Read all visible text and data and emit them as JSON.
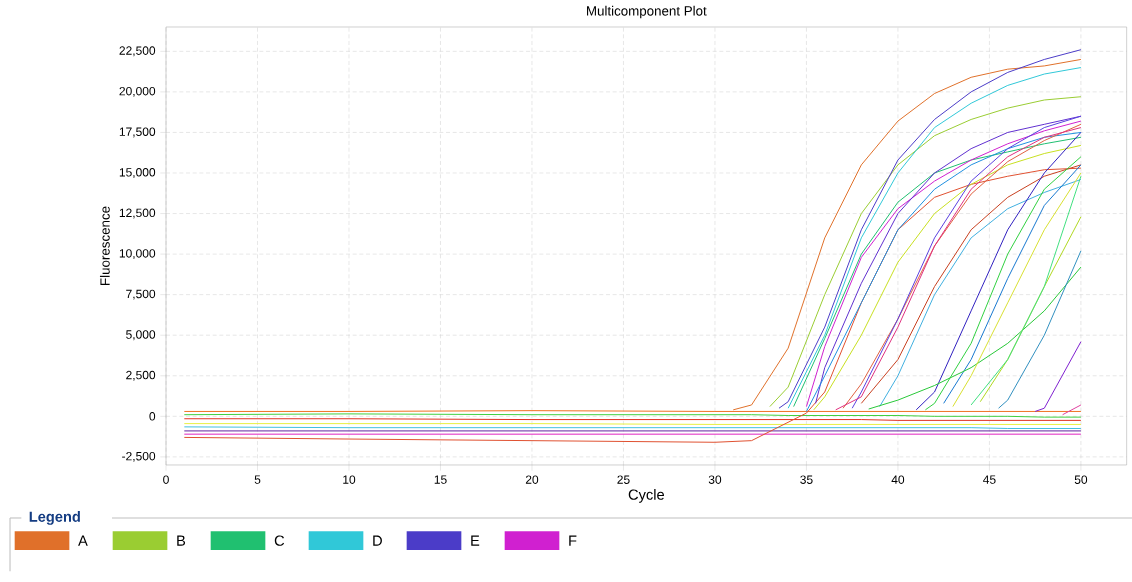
{
  "chart_data": {
    "type": "line",
    "title": "Multicomponent Plot",
    "xlabel": "Cycle",
    "ylabel": "Fluorescence",
    "legend_title": "Legend",
    "legend": "bottom",
    "grid": true,
    "line_style": "solid",
    "xlim": [
      0,
      52.5
    ],
    "ylim": [
      -3000,
      24000
    ],
    "xticks": [
      0,
      5,
      10,
      15,
      20,
      25,
      30,
      35,
      40,
      45,
      50
    ],
    "yticks": [
      {
        "value": -2500,
        "label": "-2,500"
      },
      0,
      {
        "value": 2500,
        "label": "2,500"
      },
      {
        "value": 5000,
        "label": "5,000"
      },
      {
        "value": 7500,
        "label": "7,500"
      },
      {
        "value": 10000,
        "label": "10,000"
      },
      {
        "value": 12500,
        "label": "12,500"
      },
      {
        "value": 15000,
        "label": "15,000"
      },
      {
        "value": 17500,
        "label": "17,500"
      },
      {
        "value": 20000,
        "label": "20,000"
      },
      {
        "value": 22500,
        "label": "22,500"
      }
    ],
    "x": [
      1,
      10,
      20,
      30,
      32,
      34,
      36,
      38,
      40,
      42,
      44,
      46,
      48,
      50
    ],
    "series": [
      {
        "color": "#f07020",
        "values": [
          300,
          300,
          350,
          300,
          300,
          300,
          300,
          300,
          300,
          300,
          300,
          300,
          300,
          300
        ]
      },
      {
        "color": "#40d040",
        "values": [
          100,
          150,
          100,
          100,
          100,
          50,
          50,
          50,
          50,
          0,
          0,
          0,
          -50,
          -50
        ]
      },
      {
        "color": "#e03020",
        "values": [
          -150,
          -150,
          -200,
          -200,
          -200,
          -200,
          -200,
          -200,
          -250,
          -250,
          -250,
          -250,
          -250,
          -250
        ]
      },
      {
        "color": "#e8f040",
        "values": [
          -450,
          -450,
          -450,
          -500,
          -500,
          -500,
          -500,
          -500,
          -500,
          -500,
          -500,
          -500,
          -500,
          -500
        ]
      },
      {
        "color": "#40c0e0",
        "values": [
          -650,
          -700,
          -700,
          -700,
          -700,
          -700,
          -700,
          -700,
          -700,
          -700,
          -700,
          -750,
          -750,
          -750
        ]
      },
      {
        "color": "#6020a0",
        "values": [
          -900,
          -900,
          -900,
          -900,
          -900,
          -900,
          -900,
          -900,
          -900,
          -900,
          -900,
          -900,
          -900,
          -900
        ]
      },
      {
        "color": "#e020c0",
        "values": [
          -1100,
          -1100,
          -1100,
          -1100,
          -1100,
          -1100,
          -1100,
          -1100,
          -1100,
          -1100,
          -1100,
          -1100,
          -1100,
          -1100
        ]
      },
      {
        "color": "#e05030",
        "x": [
          1,
          10,
          20,
          30,
          32,
          35,
          36,
          38,
          40,
          42,
          44,
          46,
          48,
          50
        ],
        "values": [
          -1300,
          -1400,
          -1500,
          -1600,
          -1500,
          200,
          1500,
          7000,
          11500,
          13500,
          14300,
          14800,
          15200,
          15300
        ]
      },
      {
        "name": "A",
        "color": "#e0702a",
        "x": [
          31,
          32,
          34,
          36,
          38,
          40,
          42,
          44,
          46,
          48,
          50
        ],
        "values": [
          400,
          700,
          4200,
          11000,
          15500,
          18200,
          19900,
          20900,
          21400,
          21600,
          22000
        ]
      },
      {
        "name": "B",
        "color": "#9acd32",
        "x": [
          33,
          34,
          36,
          38,
          40,
          42,
          44,
          46,
          48,
          50
        ],
        "values": [
          600,
          1800,
          7500,
          12500,
          15500,
          17300,
          18300,
          19000,
          19500,
          19700
        ]
      },
      {
        "name": "C",
        "color": "#20c070",
        "x": [
          34.3,
          36,
          38,
          40,
          42,
          44,
          46,
          48,
          50
        ],
        "values": [
          600,
          4800,
          10000,
          13200,
          15000,
          15800,
          16300,
          16800,
          17200
        ]
      },
      {
        "name": "D",
        "color": "#30c8d8",
        "x": [
          34,
          36,
          38,
          40,
          42,
          44,
          46,
          48,
          50
        ],
        "values": [
          500,
          5000,
          11000,
          15000,
          17800,
          19300,
          20400,
          21100,
          21500
        ]
      },
      {
        "name": "E",
        "color": "#4b3cc8",
        "x": [
          33.5,
          34,
          36,
          38,
          40,
          42,
          44,
          46,
          48,
          50
        ],
        "values": [
          500,
          900,
          5500,
          11500,
          15800,
          18300,
          20000,
          21200,
          22000,
          22600
        ]
      },
      {
        "name": "F",
        "color": "#d020d0",
        "x": [
          35,
          36,
          38,
          40,
          42,
          44,
          46,
          48,
          50
        ],
        "values": [
          600,
          4300,
          9800,
          12800,
          14500,
          15800,
          16800,
          17600,
          18200
        ]
      },
      {
        "color": "#6030d0",
        "x": [
          35.5,
          36,
          38,
          40,
          42,
          44,
          46,
          48,
          50
        ],
        "values": [
          800,
          3000,
          8200,
          12500,
          15000,
          16500,
          17500,
          18000,
          18500
        ]
      },
      {
        "color": "#2090e0",
        "x": [
          35,
          36,
          38,
          40,
          42,
          44,
          46,
          48,
          50
        ],
        "values": [
          300,
          2500,
          7000,
          11500,
          14000,
          15500,
          16500,
          17200,
          17500
        ]
      },
      {
        "color": "#c8e020",
        "x": [
          35.4,
          36,
          38,
          40,
          42,
          44,
          46,
          48,
          50
        ],
        "values": [
          400,
          1200,
          5000,
          9500,
          12500,
          14300,
          15500,
          16200,
          16700
        ]
      },
      {
        "color": "#e06040",
        "x": [
          37,
          38,
          40,
          42,
          44,
          46,
          48,
          50
        ],
        "values": [
          500,
          2000,
          6000,
          10500,
          13700,
          15700,
          17000,
          18000
        ]
      },
      {
        "color": "#5a40e0",
        "x": [
          37.5,
          38,
          40,
          42,
          44,
          46,
          48,
          50
        ],
        "values": [
          500,
          1500,
          6000,
          11000,
          14500,
          16500,
          17800,
          18500
        ]
      },
      {
        "color": "#e03080",
        "x": [
          36.6,
          38,
          40,
          42,
          44,
          46,
          48,
          50
        ],
        "values": [
          400,
          1200,
          5500,
          10500,
          14000,
          16000,
          17200,
          17800
        ]
      },
      {
        "color": "#c84020",
        "x": [
          38,
          40,
          42,
          44,
          46,
          48,
          50
        ],
        "values": [
          800,
          3500,
          8000,
          11500,
          13500,
          14800,
          15500
        ]
      },
      {
        "color": "#40b0e0",
        "x": [
          39,
          40,
          42,
          44,
          46,
          48,
          50
        ],
        "values": [
          600,
          2500,
          7500,
          11000,
          12800,
          13800,
          14600
        ]
      },
      {
        "color": "#30d040",
        "x": [
          41.5,
          42,
          44,
          46,
          48,
          50
        ],
        "values": [
          400,
          800,
          4500,
          10000,
          14000,
          16000
        ]
      },
      {
        "color": "#3020c0",
        "x": [
          41,
          42,
          44,
          46,
          48,
          50
        ],
        "values": [
          400,
          1500,
          6500,
          11500,
          15000,
          17500
        ]
      },
      {
        "color": "#1878d0",
        "x": [
          42.5,
          44,
          46,
          48,
          50
        ],
        "values": [
          800,
          3500,
          8500,
          13000,
          15500
        ]
      },
      {
        "color": "#28c838",
        "x": [
          38.4,
          40,
          42,
          44,
          46,
          48,
          50
        ],
        "values": [
          450,
          1000,
          1900,
          3000,
          4500,
          6500,
          9200
        ]
      },
      {
        "color": "#d8e030",
        "x": [
          43,
          44,
          46,
          48,
          50
        ],
        "values": [
          600,
          2500,
          7000,
          11500,
          15000
        ]
      },
      {
        "color": "#b0d820",
        "x": [
          44.5,
          46,
          48,
          50
        ],
        "values": [
          900,
          3500,
          8000,
          12300
        ]
      },
      {
        "color": "#40e080",
        "x": [
          44,
          46,
          48,
          50
        ],
        "values": [
          700,
          3500,
          8000,
          14800
        ]
      },
      {
        "color": "#3090c0",
        "x": [
          45.5,
          46,
          48,
          50
        ],
        "values": [
          500,
          1000,
          5000,
          10200
        ]
      },
      {
        "color": "#8020d0",
        "x": [
          47.5,
          48,
          50
        ],
        "values": [
          300,
          500,
          4600
        ]
      },
      {
        "color": "#e040a0",
        "x": [
          49,
          50
        ],
        "values": [
          100,
          700
        ]
      }
    ]
  }
}
